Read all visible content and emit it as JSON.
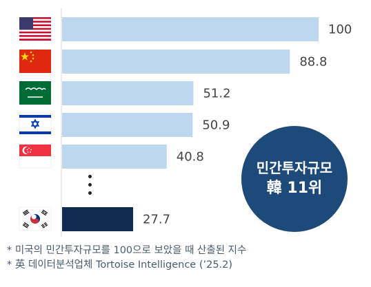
{
  "chart_data": {
    "type": "bar",
    "orientation": "horizontal",
    "categories": [
      "United States",
      "China",
      "Saudi Arabia",
      "Israel",
      "Singapore",
      "South Korea"
    ],
    "values": [
      100,
      88.8,
      51.2,
      50.9,
      40.8,
      27.7
    ],
    "value_labels": [
      "100",
      "88.8",
      "51.2",
      "50.9",
      "40.8",
      "27.7"
    ],
    "xlim": [
      0,
      100
    ],
    "highlight_category": "South Korea",
    "colors": {
      "bar": "#bdd7ee",
      "highlight": "#0f2a4f",
      "badge": "#1d4a78"
    },
    "category_icons": [
      "us-flag-icon",
      "china-flag-icon",
      "saudi-flag-icon",
      "israel-flag-icon",
      "singapore-flag-icon",
      "korea-flag-icon"
    ],
    "gap_marker": "⋮"
  },
  "badge": {
    "line1": "민간투자규모",
    "line2": "韓 11위"
  },
  "footnotes": [
    "* 미국의 민간투자규모를 100으로 보았을 때 산출된 지수",
    "* 英 데이터분석업체 Tortoise Intelligence (’25.2)"
  ]
}
